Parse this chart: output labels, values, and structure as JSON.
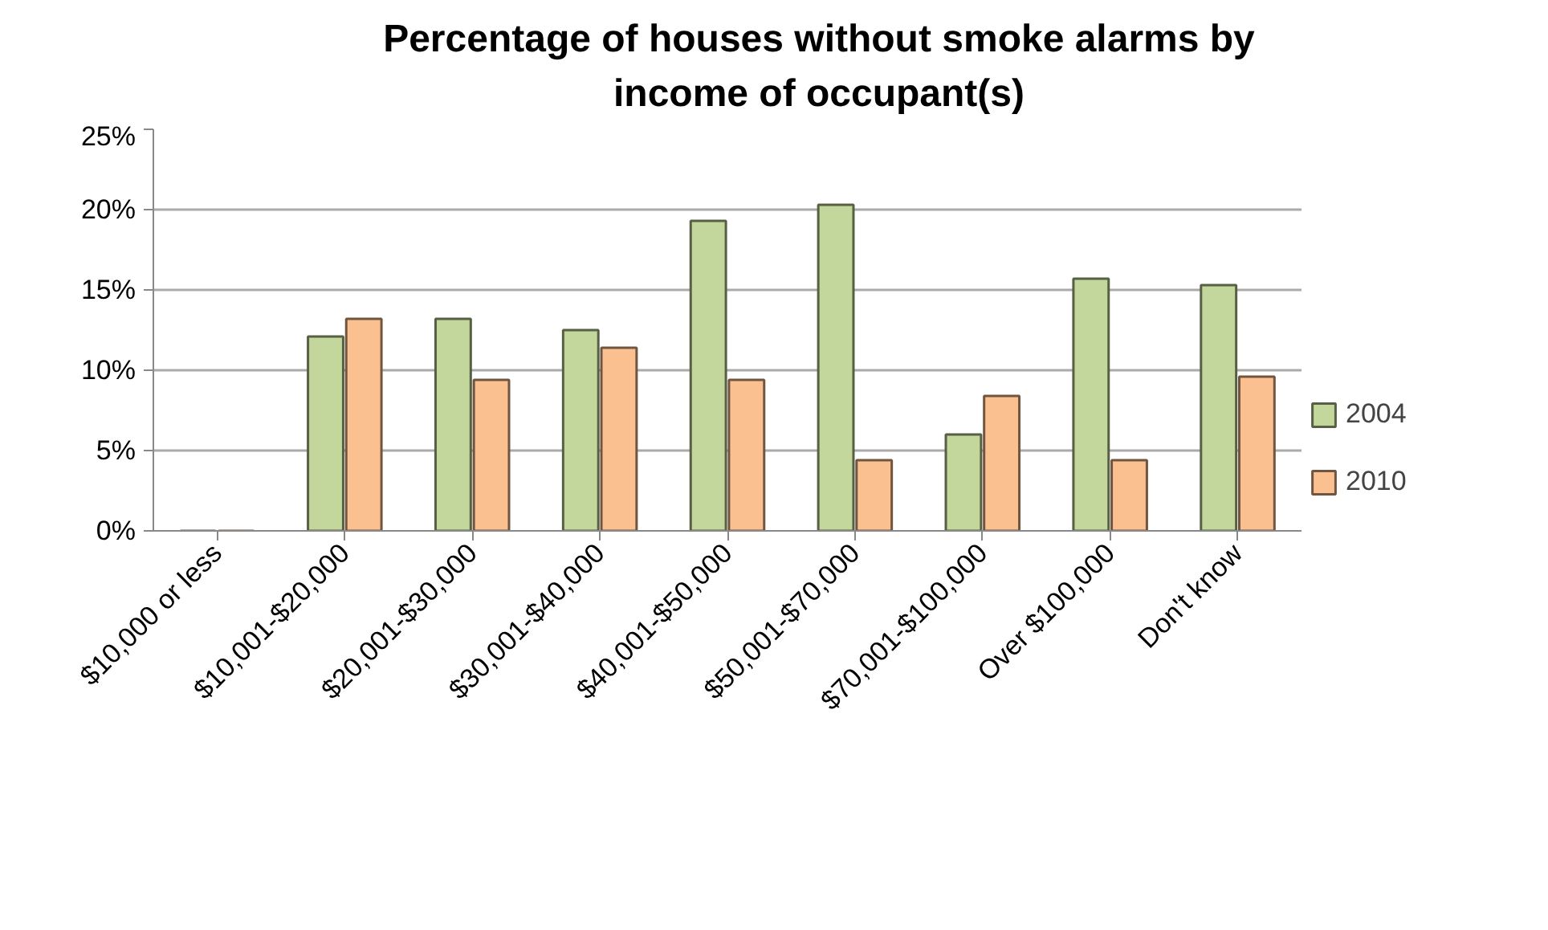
{
  "chart_data": {
    "type": "bar",
    "title": "Percentage of houses without smoke alarms by income of occupant(s)",
    "categories": [
      "$10,000 or less",
      "$10,001-$20,000",
      "$20,001-$30,000",
      "$30,001-$40,000",
      "$40,001-$50,000",
      "$50,001-$70,000",
      "$70,001-$100,000",
      "Over $100,000",
      "Don't know"
    ],
    "series": [
      {
        "name": "2004",
        "color": "#c3d69b",
        "values": [
          null,
          12.1,
          13.2,
          12.5,
          19.3,
          20.3,
          6.0,
          15.7,
          15.3
        ]
      },
      {
        "name": "2010",
        "color": "#fac090",
        "values": [
          null,
          13.2,
          9.4,
          11.4,
          9.4,
          4.4,
          8.4,
          4.4,
          9.6
        ]
      }
    ],
    "ylim": [
      0,
      25
    ],
    "yticks": [
      {
        "value": 0,
        "label": "0%"
      },
      {
        "value": 5,
        "label": "5%"
      },
      {
        "value": 10,
        "label": "10%"
      },
      {
        "value": 15,
        "label": "15%"
      },
      {
        "value": 20,
        "label": "20%"
      },
      {
        "value": 25,
        "label": "25%"
      }
    ],
    "grid": "y",
    "legend": "right"
  }
}
